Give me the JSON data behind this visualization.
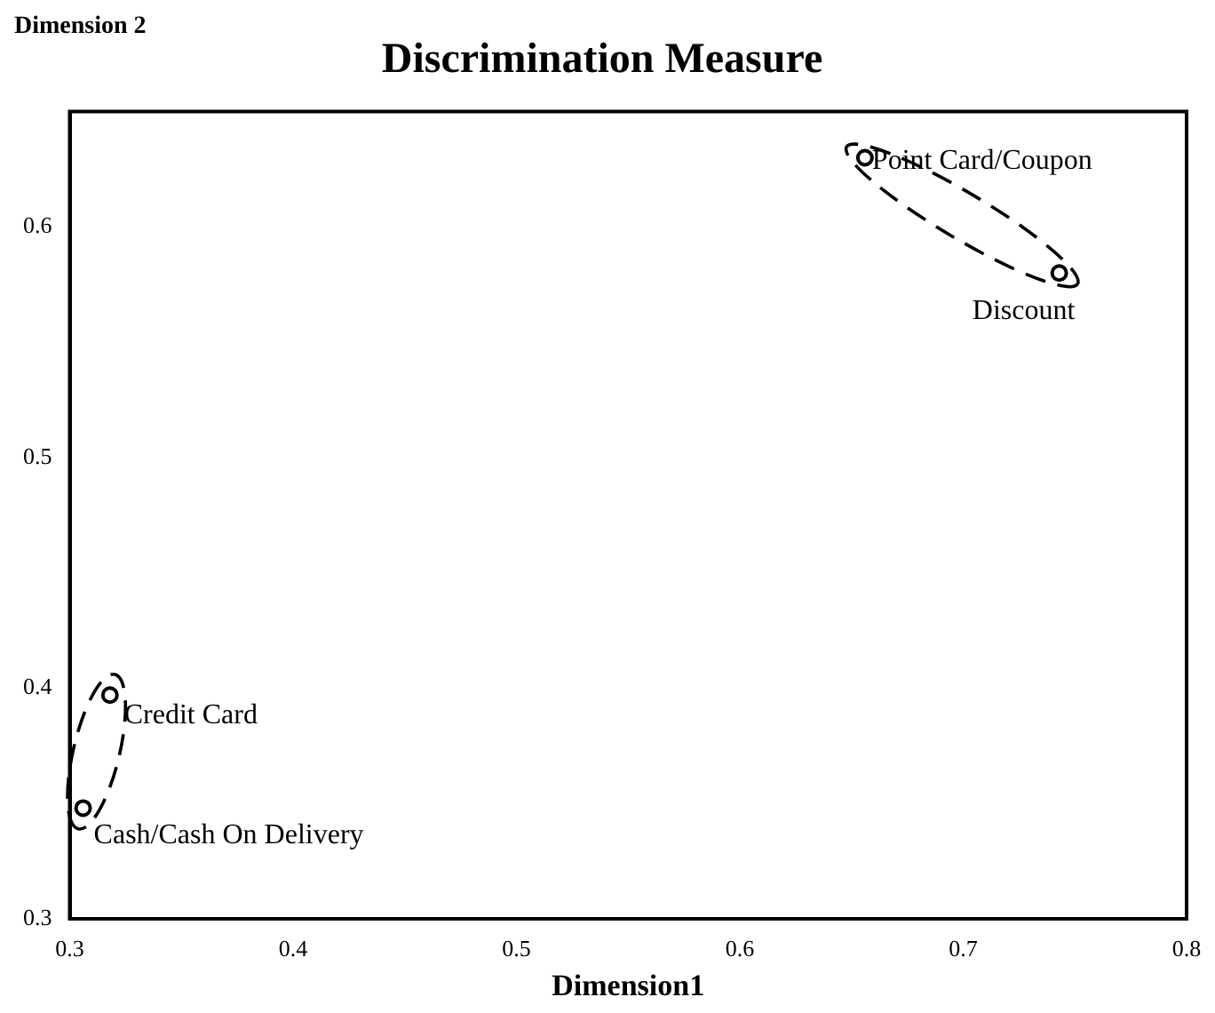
{
  "chart_data": {
    "type": "scatter",
    "title": "Discrimination Measure",
    "xlabel": "Dimension1",
    "ylabel": "Dimension 2",
    "x": [
      0.656,
      0.743,
      0.318,
      0.306
    ],
    "values": [
      0.63,
      0.58,
      0.397,
      0.348
    ],
    "color": "#000000",
    "marker": "circle",
    "xlim": [
      0.3,
      0.8
    ],
    "xticks": [
      0.3,
      0.4,
      0.5,
      0.6,
      0.7,
      0.8
    ],
    "ylim": [
      0.3,
      0.65
    ],
    "yticks": [
      0.3,
      0.4,
      0.5,
      0.6
    ],
    "annotations": [
      {
        "text": "Point Card/Coupon",
        "x": 0.656,
        "y": 0.63
      },
      {
        "text": "Discount",
        "x": 0.743,
        "y": 0.58
      },
      {
        "text": "Credit Card",
        "x": 0.318,
        "y": 0.397
      },
      {
        "text": "Cash/Cash On Delivery",
        "x": 0.306,
        "y": 0.348
      }
    ]
  }
}
